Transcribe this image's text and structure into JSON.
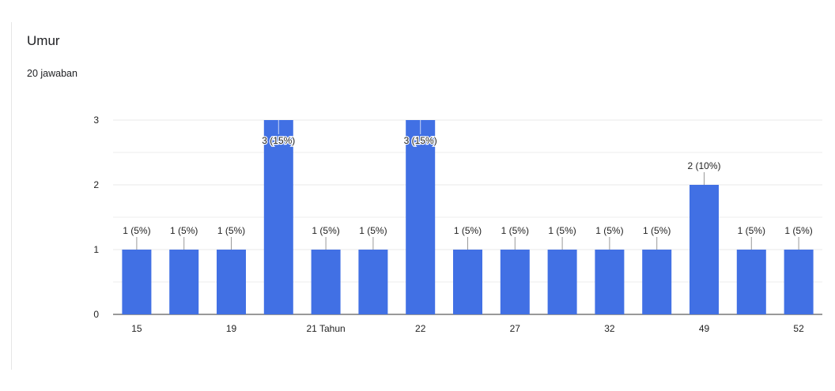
{
  "header": {
    "title": "Umur",
    "subtitle": "20 jawaban"
  },
  "colors": {
    "bar": "#4170e4",
    "grid": "#e8e8e8",
    "axis": "#333333",
    "text": "#222222"
  },
  "chart_data": {
    "type": "bar",
    "title": "Umur",
    "subtitle": "20 jawaban",
    "xlabel": "",
    "ylabel": "",
    "ylim": [
      0,
      3
    ],
    "yticks": [
      0,
      1,
      2,
      3
    ],
    "grid": true,
    "categories": [
      "15",
      "",
      "19",
      "",
      "21 Tahun",
      "",
      "22",
      "",
      "27",
      "",
      "32",
      "",
      "49",
      "",
      "52"
    ],
    "values": [
      1,
      1,
      1,
      3,
      1,
      1,
      3,
      1,
      1,
      1,
      1,
      1,
      2,
      1,
      1
    ],
    "data_labels": [
      "1 (5%)",
      "1 (5%)",
      "1 (5%)",
      "3 (15%)",
      "1 (5%)",
      "1 (5%)",
      "3 (15%)",
      "1 (5%)",
      "1 (5%)",
      "1 (5%)",
      "1 (5%)",
      "1 (5%)",
      "2 (10%)",
      "1 (5%)",
      "1 (5%)"
    ]
  }
}
